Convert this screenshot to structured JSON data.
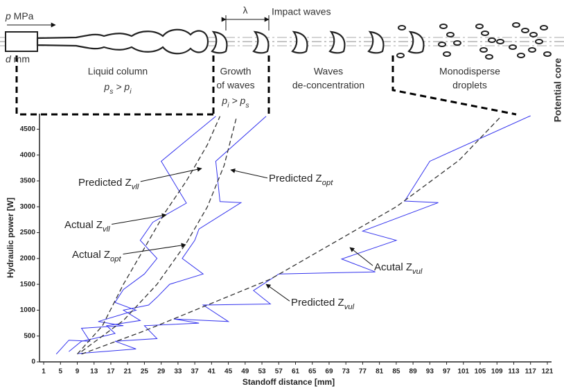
{
  "diagram": {
    "pressure_label": {
      "symbol": "p",
      "unit": " MPa"
    },
    "diameter_label": {
      "symbol": "d",
      "unit": " mm"
    },
    "wavelength": "λ",
    "impact_waves": "Impact waves",
    "zones": [
      {
        "lines": [
          "Liquid column"
        ],
        "condition": [
          {
            "t": "p",
            "sub": "s"
          },
          {
            "t": " > p",
            "sub": "i"
          }
        ]
      },
      {
        "lines": [
          "Growth",
          "of waves"
        ],
        "condition": [
          {
            "t": "p",
            "sub": "i"
          },
          {
            "t": " > p",
            "sub": "s"
          }
        ]
      },
      {
        "lines": [
          "Waves",
          "de-concentration"
        ],
        "condition": []
      },
      {
        "lines": [
          "Monodisperse",
          "droplets"
        ],
        "condition": []
      }
    ],
    "potential_core": "Potential core"
  },
  "chart_data": {
    "type": "line",
    "xlabel": "Standoff distance [mm]",
    "ylabel": "Hydraulic power [W]",
    "xlim": [
      0,
      122
    ],
    "ylim": [
      0,
      4800
    ],
    "xticks": [
      1,
      5,
      9,
      13,
      17,
      21,
      25,
      29,
      33,
      37,
      41,
      45,
      49,
      53,
      57,
      61,
      65,
      69,
      73,
      77,
      81,
      85,
      89,
      93,
      97,
      101,
      105,
      109,
      113,
      117,
      121
    ],
    "yticks": [
      0,
      500,
      1000,
      1500,
      2000,
      2500,
      3000,
      3500,
      4000,
      4500
    ],
    "series": [
      {
        "name": "Actual Z",
        "name_sub": "vll",
        "color": "#3333ee",
        "style": "solid",
        "x": [
          42,
          29,
          35,
          27,
          24,
          28,
          25,
          20,
          18,
          23,
          14,
          20,
          10,
          12,
          7,
          4
        ],
        "values": [
          4750,
          3880,
          3070,
          2700,
          2350,
          2000,
          1700,
          1400,
          1150,
          1000,
          780,
          700,
          650,
          400,
          420,
          150
        ]
      },
      {
        "name": "Actual Z",
        "name_sub": "opt",
        "color": "#3333ee",
        "style": "solid",
        "x": [
          54,
          42,
          43,
          48,
          38,
          37,
          34,
          39,
          31,
          28,
          26,
          20,
          24,
          16,
          18,
          13,
          10,
          7
        ],
        "values": [
          4750,
          3880,
          3100,
          3080,
          2570,
          2350,
          2000,
          1700,
          1500,
          1250,
          1100,
          1000,
          800,
          700,
          550,
          450,
          400,
          200
        ]
      },
      {
        "name": "Acutal Z",
        "name_sub": "vul",
        "color": "#3333ee",
        "style": "solid",
        "x": [
          117,
          93,
          87,
          95,
          77,
          85,
          72,
          80,
          57,
          51,
          55,
          39,
          45,
          32,
          38,
          25,
          28,
          18,
          23,
          9
        ],
        "values": [
          4760,
          3880,
          3110,
          3080,
          2530,
          2350,
          1990,
          1740,
          1700,
          1380,
          1120,
          1100,
          780,
          830,
          750,
          700,
          450,
          400,
          250,
          160
        ]
      },
      {
        "name": "Predicted Z",
        "name_sub": "vll",
        "color": "#333333",
        "style": "dashed",
        "x": [
          9,
          15,
          20,
          25,
          30,
          35,
          40,
          43
        ],
        "values": [
          150,
          700,
          1500,
          2200,
          2900,
          3500,
          4200,
          4750
        ]
      },
      {
        "name": "Predicted Z",
        "name_sub": "opt",
        "color": "#333333",
        "style": "dashed",
        "x": [
          10,
          20,
          28,
          35,
          40,
          44,
          47
        ],
        "values": [
          200,
          800,
          1500,
          2300,
          3000,
          3800,
          4750
        ]
      },
      {
        "name": "Predicted Z",
        "name_sub": "vul",
        "color": "#333333",
        "style": "dashed",
        "x": [
          10,
          25,
          40,
          55,
          70,
          85,
          100,
          110
        ],
        "values": [
          150,
          600,
          1100,
          1600,
          2300,
          3000,
          3900,
          4750
        ]
      }
    ]
  }
}
